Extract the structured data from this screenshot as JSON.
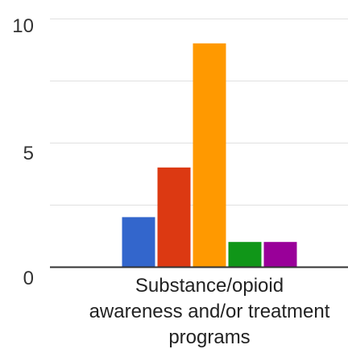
{
  "chart_data": {
    "type": "bar",
    "title": "",
    "xlabel": "",
    "ylabel": "",
    "categories": [
      "Substance/opioid awareness and/or treatment programs"
    ],
    "category_label_lines": [
      "Substance/opioid",
      "awareness and/or treatment",
      "programs"
    ],
    "ylim": [
      0,
      10
    ],
    "y_ticks": [
      0,
      5,
      10
    ],
    "grid": true,
    "legend": "none",
    "series": [
      {
        "values": [
          2
        ],
        "color": "#3366cc"
      },
      {
        "values": [
          4
        ],
        "color": "#dc3912"
      },
      {
        "values": [
          9
        ],
        "color": "#ff9900"
      },
      {
        "values": [
          1
        ],
        "color": "#109618"
      },
      {
        "values": [
          1
        ],
        "color": "#990099"
      }
    ]
  }
}
